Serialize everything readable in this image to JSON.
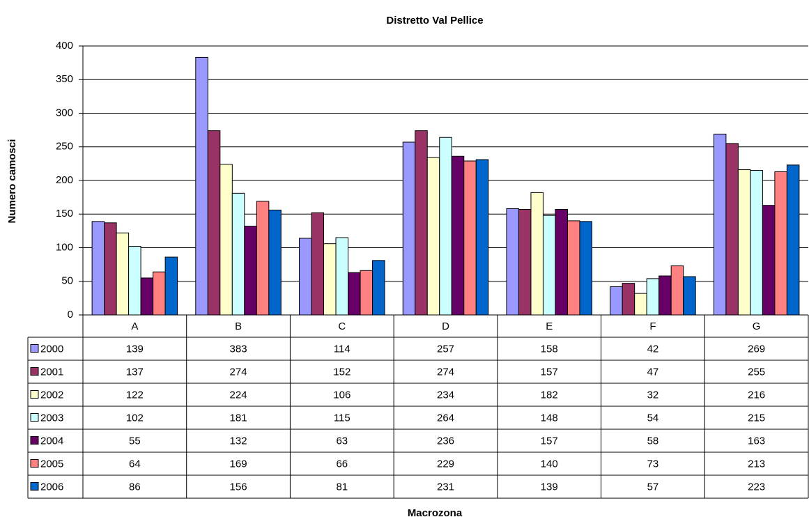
{
  "chart_data": {
    "type": "bar",
    "title": "Distretto Val Pellice",
    "x_label": "Macrozona",
    "y_label": "Numero camosci",
    "categories": [
      "A",
      "B",
      "C",
      "D",
      "E",
      "F",
      "G"
    ],
    "series": [
      {
        "name": "2000",
        "color": "#9999ff",
        "values": [
          139,
          383,
          114,
          257,
          158,
          42,
          269
        ]
      },
      {
        "name": "2001",
        "color": "#993366",
        "values": [
          137,
          274,
          152,
          274,
          157,
          47,
          255
        ]
      },
      {
        "name": "2002",
        "color": "#ffffcc",
        "values": [
          122,
          224,
          106,
          234,
          182,
          32,
          216
        ]
      },
      {
        "name": "2003",
        "color": "#ccffff",
        "values": [
          102,
          181,
          115,
          264,
          148,
          54,
          215
        ]
      },
      {
        "name": "2004",
        "color": "#660066",
        "values": [
          55,
          132,
          63,
          236,
          157,
          58,
          163
        ]
      },
      {
        "name": "2005",
        "color": "#ff8080",
        "values": [
          64,
          169,
          66,
          229,
          140,
          73,
          213
        ]
      },
      {
        "name": "2006",
        "color": "#0066cc",
        "values": [
          86,
          156,
          81,
          231,
          139,
          57,
          223
        ]
      }
    ],
    "ylim": [
      0,
      400
    ],
    "yticks": [
      0,
      50,
      100,
      150,
      200,
      250,
      300,
      350,
      400
    ],
    "grid": true
  }
}
